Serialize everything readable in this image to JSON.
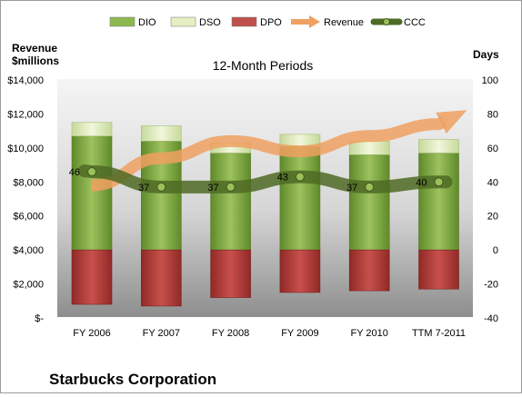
{
  "chart_data": {
    "type": "bar",
    "title": "12-Month Periods",
    "company": "Starbucks Corporation",
    "left_axis_title": "Revenue $millions",
    "right_axis_title": "Days",
    "categories": [
      "FY 2006",
      "FY 2007",
      "FY 2008",
      "FY 2009",
      "FY 2010",
      "TTM 7-2011"
    ],
    "left_ticks": [
      "$14,000",
      "$12,000",
      "$10,000",
      "$8,000",
      "$6,000",
      "$4,000",
      "$2,000",
      "$-"
    ],
    "right_ticks": [
      "100",
      "80",
      "60",
      "40",
      "20",
      "0",
      "-20",
      "-40"
    ],
    "ylim_left": [
      0,
      14000
    ],
    "ylim_right": [
      -40,
      100
    ],
    "legend": [
      "DIO",
      "DSO",
      "DPO",
      "Revenue",
      "CCC"
    ],
    "series": [
      {
        "name": "DIO",
        "axis": "right",
        "values": [
          67,
          64,
          57,
          61,
          56,
          57
        ]
      },
      {
        "name": "DSO",
        "axis": "right",
        "values": [
          8,
          9,
          6,
          7,
          8,
          8
        ]
      },
      {
        "name": "DPO",
        "axis": "right",
        "values": [
          -32,
          -33,
          -28,
          -25,
          -24,
          -23
        ]
      },
      {
        "name": "Revenue",
        "axis": "left",
        "values": [
          7800,
          9400,
          10400,
          9800,
          10700,
          11400
        ]
      },
      {
        "name": "CCC",
        "axis": "right",
        "values": [
          46,
          37,
          37,
          43,
          37,
          40
        ]
      }
    ],
    "colors": {
      "DIO": "#8db84f",
      "DSO": "#e4efc2",
      "DPO": "#c0504d",
      "Revenue": "#f0a060",
      "CCC": "#4f6a25"
    },
    "legend_position": "top",
    "grid": false
  }
}
